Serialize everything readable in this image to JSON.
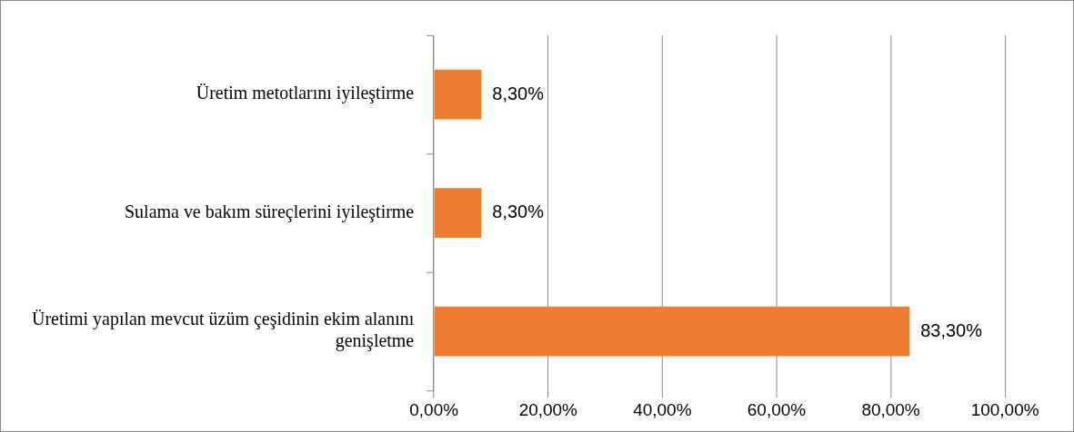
{
  "chart_data": {
    "type": "bar",
    "orientation": "horizontal",
    "categories": [
      "Üretim metotlarını iyileştirme",
      "Sulama ve bakım süreçlerini iyileştirme",
      "Üretimi yapılan mevcut üzüm çeşidinin ekim alanını genişletme"
    ],
    "values": [
      8.3,
      8.3,
      83.3
    ],
    "color": "#ed7d31",
    "value_labels": [
      "8,30%",
      "8,30%",
      "83,30%"
    ],
    "xlim": [
      0,
      100
    ],
    "xticks": [
      {
        "value": 0,
        "label": "0,00%"
      },
      {
        "value": 20,
        "label": "20,00%"
      },
      {
        "value": 40,
        "label": "40,00%"
      },
      {
        "value": 60,
        "label": "60,00%"
      },
      {
        "value": 80,
        "label": "80,00%"
      },
      {
        "value": 100,
        "label": "100,00%"
      }
    ],
    "grid": "x",
    "legend": false
  }
}
